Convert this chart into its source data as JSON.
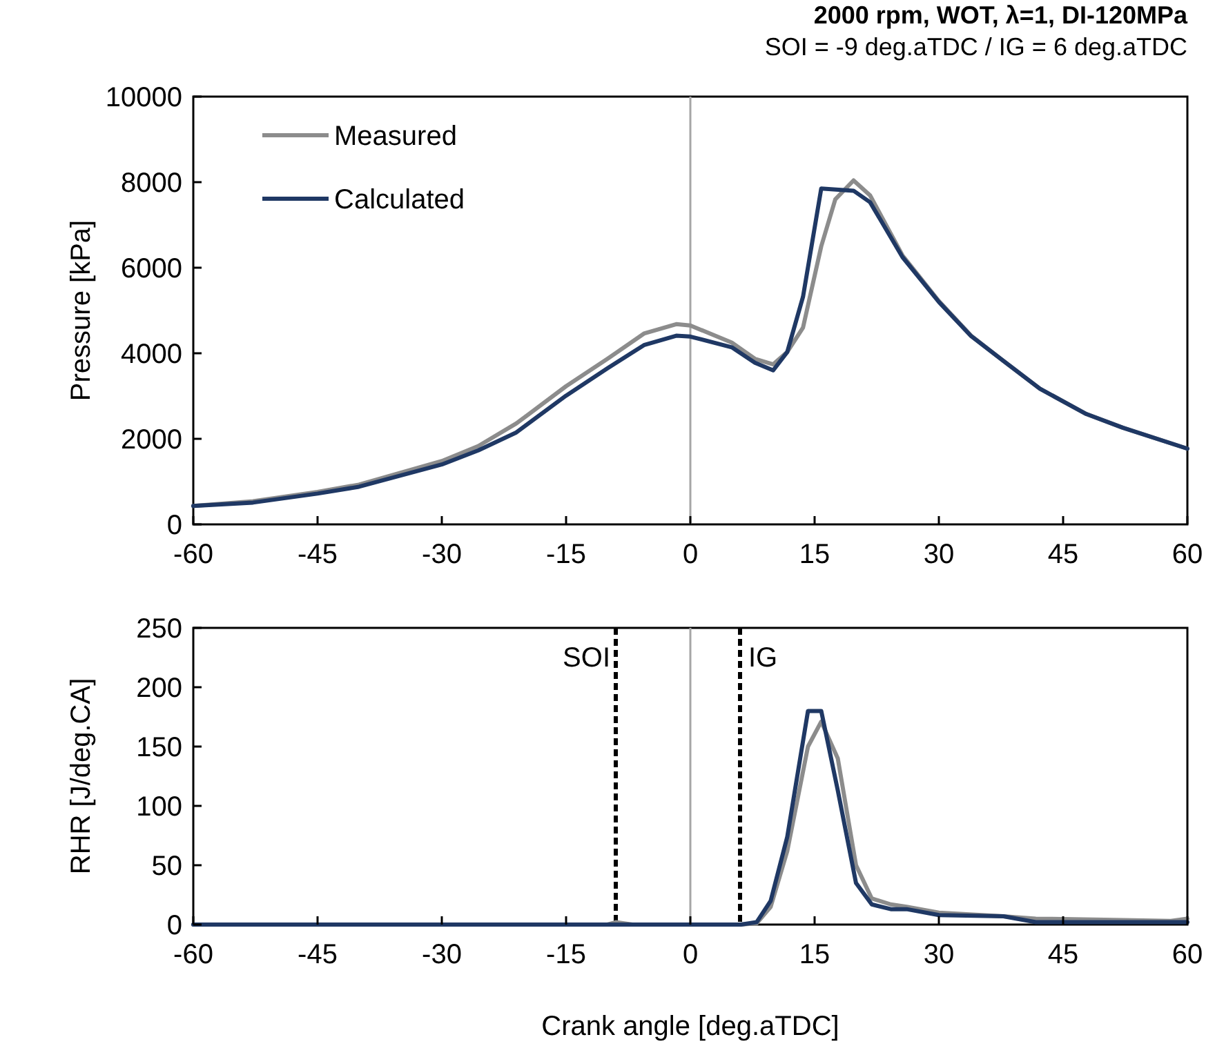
{
  "chart_data": [
    {
      "type": "line",
      "title": "2000 rpm, WOT, λ=1, DI-120MPa",
      "subtitle": "SOI = -9 deg.aTDC / IG = 6 deg.aTDC",
      "ylabel": "Pressure [kPa]",
      "xlim": [
        -60,
        60
      ],
      "xticks": [
        -60,
        -45,
        -30,
        -15,
        0,
        15,
        30,
        45,
        60
      ],
      "ylim": [
        0,
        10000
      ],
      "yticks": [
        0,
        2000,
        4000,
        6000,
        8000,
        10000
      ],
      "grid": false,
      "legend": "top left",
      "line_style": "solid",
      "ref_lines": [
        {
          "axis": "x",
          "value": 0,
          "label": null,
          "color": "#a6a6a6",
          "line_style": "solid"
        }
      ],
      "series": [
        {
          "name": "Measured",
          "color": "#8c8c8c",
          "x": [
            -60,
            -52.8,
            -45,
            -40,
            -30,
            -25.6,
            -21,
            -15,
            -10,
            -5.6,
            -1.7,
            0,
            5,
            7.8,
            10,
            11.7,
            13.6,
            15.8,
            17.5,
            19.7,
            21.7,
            25.6,
            30,
            33.9,
            37.8,
            42.2,
            47.8,
            52.2,
            60
          ],
          "values": [
            430,
            540,
            760,
            930,
            1480,
            1830,
            2360,
            3230,
            3870,
            4460,
            4680,
            4650,
            4250,
            3870,
            3740,
            4030,
            4600,
            6500,
            7600,
            8040,
            7690,
            6290,
            5220,
            4410,
            3820,
            3170,
            2580,
            2260,
            1770
          ]
        },
        {
          "name": "Calculated",
          "color": "#1f3864",
          "x": [
            -60,
            -52.8,
            -45,
            -40,
            -30,
            -25.6,
            -21,
            -15,
            -10,
            -5.6,
            -1.7,
            0,
            5,
            7.8,
            10,
            11.7,
            13.6,
            15.8,
            19.7,
            21.7,
            25.6,
            30,
            33.9,
            37.8,
            42.2,
            47.8,
            52.2,
            60
          ],
          "values": [
            430,
            510,
            720,
            880,
            1400,
            1730,
            2150,
            3010,
            3650,
            4190,
            4410,
            4390,
            4140,
            3780,
            3600,
            4030,
            5320,
            7850,
            7800,
            7530,
            6250,
            5200,
            4400,
            3820,
            3170,
            2580,
            2260,
            1770
          ]
        }
      ]
    },
    {
      "type": "line",
      "xlabel": "Crank angle [deg.aTDC]",
      "ylabel": "RHR [J/deg.CA]",
      "xlim": [
        -60,
        60
      ],
      "xticks": [
        -60,
        -45,
        -30,
        -15,
        0,
        15,
        30,
        45,
        60
      ],
      "ylim": [
        0,
        250
      ],
      "yticks": [
        0,
        50,
        100,
        150,
        200,
        250
      ],
      "grid": false,
      "legend": false,
      "line_style": "solid",
      "ref_lines": [
        {
          "axis": "x",
          "value": 0,
          "label": null,
          "color": "#a6a6a6",
          "line_style": "solid"
        },
        {
          "axis": "x",
          "value": -9,
          "label": "SOI",
          "color": "#000000",
          "line_style": "dashed"
        },
        {
          "axis": "x",
          "value": 6,
          "label": "IG",
          "color": "#000000",
          "line_style": "dashed"
        }
      ],
      "series": [
        {
          "color": "#8c8c8c",
          "x": [
            -60,
            -10,
            -9,
            -8,
            -7,
            6,
            8,
            9.7,
            11.7,
            14.2,
            15.8,
            17.8,
            20,
            21.9,
            24.2,
            26.1,
            30,
            37.8,
            41.7,
            50,
            58,
            60
          ],
          "values": [
            0,
            0,
            2,
            1,
            0,
            0,
            1,
            15,
            62,
            150,
            171,
            140,
            50,
            22,
            17,
            15,
            10,
            7,
            5,
            4,
            3,
            5
          ]
        },
        {
          "color": "#1f3864",
          "x": [
            -60,
            6.1,
            8,
            9.7,
            11.7,
            14.2,
            15.8,
            17.8,
            20,
            21.9,
            24.2,
            26.1,
            30,
            37.8,
            41.7,
            60
          ],
          "values": [
            0,
            0,
            2,
            20,
            74,
            180,
            180,
            113,
            35,
            17,
            13,
            13,
            8,
            7,
            2,
            2
          ]
        }
      ]
    }
  ]
}
